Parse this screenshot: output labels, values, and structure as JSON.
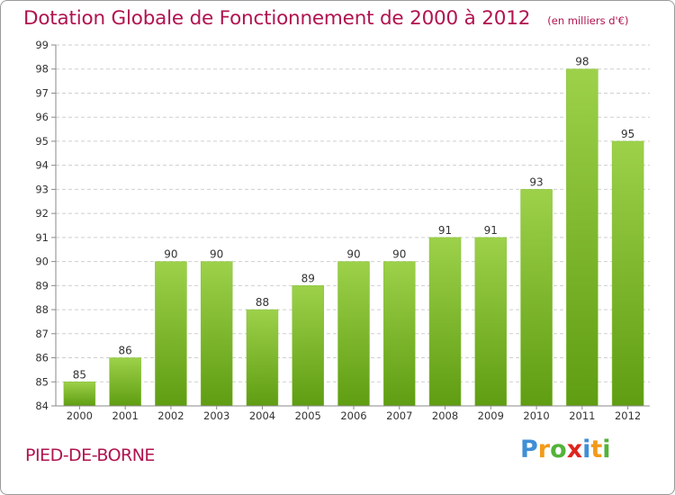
{
  "header": {
    "title": "Dotation Globale de Fonctionnement de 2000 à 2012",
    "subtitle": "(en milliers d'€)"
  },
  "footer": {
    "commune": "PIED-DE-BORNE",
    "logo_letters": [
      "P",
      "r",
      "o",
      "x",
      "i",
      "t",
      "i"
    ],
    "logo_colors": [
      "#3f8fd6",
      "#f29a1a",
      "#52b33a",
      "#e0231e",
      "#3f8fd6",
      "#f29a1a",
      "#52b33a"
    ]
  },
  "colors": {
    "title": "#b0134f",
    "bar_top": "#9dd14a",
    "bar_bottom": "#5f9d12",
    "grid": "#cfcfcf"
  },
  "chart_data": {
    "type": "bar",
    "categories": [
      "2000",
      "2001",
      "2002",
      "2003",
      "2004",
      "2005",
      "2006",
      "2007",
      "2008",
      "2009",
      "2010",
      "2011",
      "2012"
    ],
    "values": [
      85,
      86,
      90,
      90,
      88,
      89,
      90,
      90,
      91,
      91,
      93,
      98,
      95
    ],
    "data_labels": [
      "85",
      "86",
      "90",
      "90",
      "88",
      "89",
      "90",
      "90",
      "91",
      "91",
      "93",
      "98",
      "95"
    ],
    "ylim": [
      84,
      99
    ],
    "yticks": [
      "84",
      "85",
      "86",
      "87",
      "88",
      "89",
      "90",
      "91",
      "92",
      "93",
      "94",
      "95",
      "96",
      "97",
      "98",
      "99"
    ],
    "grid": "horizontal dashed",
    "legend": "none"
  }
}
